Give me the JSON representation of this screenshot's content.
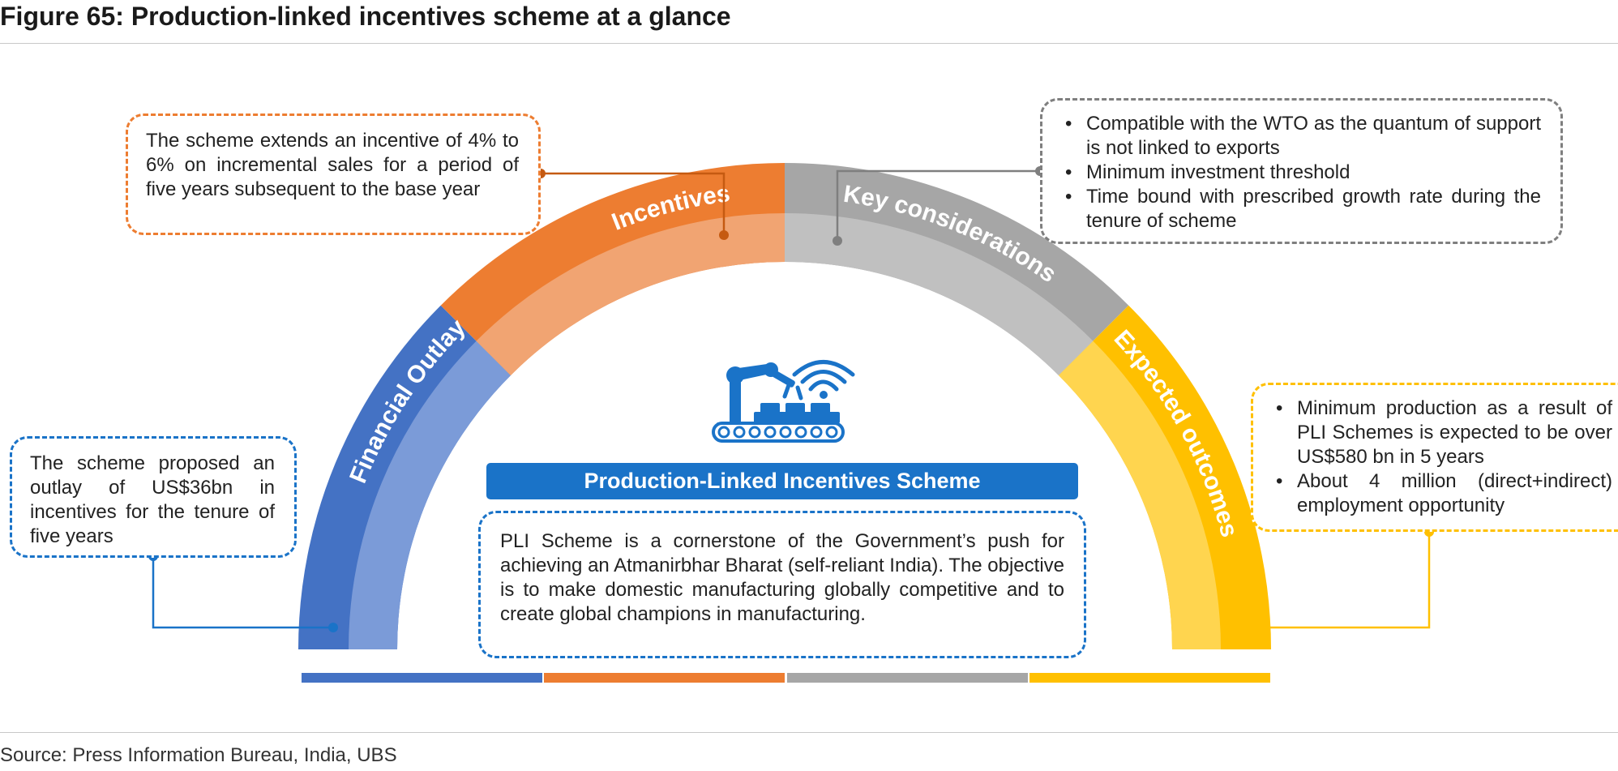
{
  "figure": {
    "title": "Figure 65: Production-linked incentives scheme at a glance",
    "source": "Source: Press Information Bureau, India, UBS"
  },
  "center": {
    "banner": "Production-Linked Incentives Scheme",
    "description": "PLI Scheme is a cornerstone of the Government’s push for achieving an Atmanirbhar Bharat (self-reliant India). The objective is to make domestic manufacturing globally competitive and to create global champions in manufacturing."
  },
  "segments": [
    {
      "label": "Financial Outlay",
      "color": "#4472c4",
      "inner_color": "#7b9bd8"
    },
    {
      "label": "Incentives",
      "color": "#ed7d31",
      "inner_color": "#f1a472"
    },
    {
      "label": "Key considerations",
      "color": "#a6a6a6",
      "inner_color": "#c0c0c0"
    },
    {
      "label": "Expected outcomes",
      "color": "#ffc000",
      "inner_color": "#ffd54f"
    }
  ],
  "callouts": {
    "financial_outlay": "The scheme proposed an outlay of US$36bn in incentives for the tenure of five years",
    "incentives": "The scheme extends an incentive of 4% to 6% on incremental sales for a period of five years subsequent to the base year",
    "key_considerations": [
      "Compatible with the WTO as the quantum of support is not linked to exports",
      "Minimum investment threshold",
      "Time bound with prescribed growth rate during the tenure of scheme"
    ],
    "expected_outcomes": [
      "Minimum production as a result of PLI Schemes is expected to be over US$580 bn in 5 years",
      "About 4 million (direct+indirect) employment opportunity"
    ]
  },
  "colors": {
    "blue_connector": "#1a73c8",
    "orange_connector": "#c55a11",
    "gray_connector": "#7f7f7f",
    "yellow_connector": "#ffc000",
    "banner": "#1a73c8",
    "icon": "#1a73c8"
  },
  "icons": {
    "center": "robotic-arm-factory-icon"
  }
}
